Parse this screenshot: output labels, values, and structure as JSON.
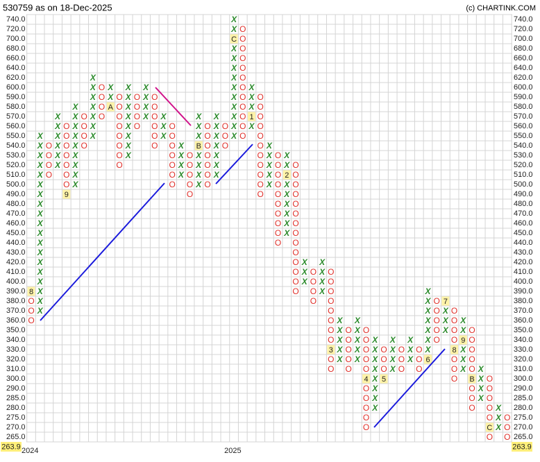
{
  "chart_data": {
    "type": "pnf",
    "title": "530759 as on 18-Dec-2025",
    "source": "(c) CHARTINK.COM",
    "last_price": {
      "value": 263.9,
      "label": "263.9"
    },
    "x_color": "#2a8a2a",
    "o_color": "#e0302a",
    "grid": true,
    "yticks": [
      {
        "value": 740,
        "label": "740.0"
      },
      {
        "value": 720,
        "label": "720.0"
      },
      {
        "value": 700,
        "label": "700.0"
      },
      {
        "value": 680,
        "label": "680.0"
      },
      {
        "value": 660,
        "label": "660.0"
      },
      {
        "value": 640,
        "label": "640.0"
      },
      {
        "value": 620,
        "label": "620.0"
      },
      {
        "value": 600,
        "label": "600.0"
      },
      {
        "value": 590,
        "label": "590.0"
      },
      {
        "value": 580,
        "label": "580.0"
      },
      {
        "value": 570,
        "label": "570.0"
      },
      {
        "value": 560,
        "label": "560.0"
      },
      {
        "value": 550,
        "label": "550.0"
      },
      {
        "value": 540,
        "label": "540.0"
      },
      {
        "value": 530,
        "label": "530.0"
      },
      {
        "value": 520,
        "label": "520.0"
      },
      {
        "value": 510,
        "label": "510.0"
      },
      {
        "value": 500,
        "label": "500.0"
      },
      {
        "value": 490,
        "label": "490.0"
      },
      {
        "value": 480,
        "label": "480.0"
      },
      {
        "value": 470,
        "label": "470.0"
      },
      {
        "value": 460,
        "label": "460.0"
      },
      {
        "value": 450,
        "label": "450.0"
      },
      {
        "value": 440,
        "label": "440.0"
      },
      {
        "value": 430,
        "label": "430.0"
      },
      {
        "value": 420,
        "label": "420.0"
      },
      {
        "value": 410,
        "label": "410.0"
      },
      {
        "value": 400,
        "label": "400.0"
      },
      {
        "value": 390,
        "label": "390.0"
      },
      {
        "value": 380,
        "label": "380.0"
      },
      {
        "value": 370,
        "label": "370.0"
      },
      {
        "value": 360,
        "label": "360.0"
      },
      {
        "value": 350,
        "label": "350.0"
      },
      {
        "value": 340,
        "label": "340.0"
      },
      {
        "value": 330,
        "label": "330.0"
      },
      {
        "value": 320,
        "label": "320.0"
      },
      {
        "value": 310,
        "label": "310.0"
      },
      {
        "value": 300,
        "label": "300.0"
      },
      {
        "value": 290,
        "label": "290.0"
      },
      {
        "value": 285,
        "label": "285.0"
      },
      {
        "value": 280,
        "label": "280.0"
      },
      {
        "value": 275,
        "label": "275.0"
      },
      {
        "value": 270,
        "label": "270.0"
      },
      {
        "value": 265,
        "label": "265.0"
      }
    ],
    "columns": [
      {
        "type": "O",
        "high": 390,
        "low": 360,
        "months": [
          {
            "value": 390,
            "label": "8"
          }
        ],
        "year": "2024"
      },
      {
        "type": "X",
        "high": 550,
        "low": 370
      },
      {
        "type": "O",
        "high": 540,
        "low": 510
      },
      {
        "type": "X",
        "high": 570,
        "low": 520
      },
      {
        "type": "O",
        "high": 560,
        "low": 490,
        "months": [
          {
            "value": 490,
            "label": "9"
          }
        ]
      },
      {
        "type": "X",
        "high": 580,
        "low": 500
      },
      {
        "type": "O",
        "high": 570,
        "low": 540
      },
      {
        "type": "X",
        "high": 620,
        "low": 550
      },
      {
        "type": "O",
        "high": 600,
        "low": 570
      },
      {
        "type": "X",
        "high": 600,
        "low": 580,
        "months": [
          {
            "value": 580,
            "label": "A"
          }
        ]
      },
      {
        "type": "O",
        "high": 590,
        "low": 520
      },
      {
        "type": "X",
        "high": 600,
        "low": 530
      },
      {
        "type": "O",
        "high": 590,
        "low": 560
      },
      {
        "type": "X",
        "high": 600,
        "low": 570
      },
      {
        "type": "O",
        "high": 590,
        "low": 540
      },
      {
        "type": "X",
        "high": 570,
        "low": 550
      },
      {
        "type": "O",
        "high": 560,
        "low": 500
      },
      {
        "type": "X",
        "high": 540,
        "low": 510
      },
      {
        "type": "O",
        "high": 530,
        "low": 490
      },
      {
        "type": "X",
        "high": 570,
        "low": 500,
        "months": [
          {
            "value": 540,
            "label": "B"
          }
        ]
      },
      {
        "type": "O",
        "high": 560,
        "low": 500
      },
      {
        "type": "X",
        "high": 570,
        "low": 510
      },
      {
        "type": "O",
        "high": 560,
        "low": 540
      },
      {
        "type": "X",
        "high": 740,
        "low": 550,
        "months": [
          {
            "value": 700,
            "label": "C"
          }
        ],
        "year": "2025"
      },
      {
        "type": "O",
        "high": 720,
        "low": 550
      },
      {
        "type": "X",
        "high": 600,
        "low": 560,
        "months": [
          {
            "value": 570,
            "label": "1"
          }
        ]
      },
      {
        "type": "O",
        "high": 590,
        "low": 490
      },
      {
        "type": "X",
        "high": 540,
        "low": 500
      },
      {
        "type": "O",
        "high": 530,
        "low": 440
      },
      {
        "type": "X",
        "high": 530,
        "low": 450,
        "months": [
          {
            "value": 510,
            "label": "2"
          }
        ]
      },
      {
        "type": "O",
        "high": 520,
        "low": 390
      },
      {
        "type": "X",
        "high": 420,
        "low": 400
      },
      {
        "type": "O",
        "high": 410,
        "low": 380
      },
      {
        "type": "X",
        "high": 420,
        "low": 390
      },
      {
        "type": "O",
        "high": 410,
        "low": 310,
        "months": [
          {
            "value": 330,
            "label": "3"
          }
        ]
      },
      {
        "type": "X",
        "high": 360,
        "low": 320
      },
      {
        "type": "O",
        "high": 350,
        "low": 310
      },
      {
        "type": "X",
        "high": 360,
        "low": 320
      },
      {
        "type": "O",
        "high": 350,
        "low": 270,
        "months": [
          {
            "value": 300,
            "label": "4"
          }
        ]
      },
      {
        "type": "X",
        "high": 340,
        "low": 280
      },
      {
        "type": "O",
        "high": 330,
        "low": 300,
        "months": [
          {
            "value": 300,
            "label": "5"
          }
        ]
      },
      {
        "type": "X",
        "high": 340,
        "low": 310
      },
      {
        "type": "O",
        "high": 330,
        "low": 310
      },
      {
        "type": "X",
        "high": 340,
        "low": 320
      },
      {
        "type": "O",
        "high": 330,
        "low": 310
      },
      {
        "type": "X",
        "high": 390,
        "low": 320,
        "months": [
          {
            "value": 320,
            "label": "6"
          }
        ]
      },
      {
        "type": "O",
        "high": 380,
        "low": 340
      },
      {
        "type": "X",
        "high": 380,
        "low": 350,
        "months": [
          {
            "value": 380,
            "label": "7"
          }
        ]
      },
      {
        "type": "O",
        "high": 370,
        "low": 300,
        "months": [
          {
            "value": 330,
            "label": "8"
          }
        ]
      },
      {
        "type": "X",
        "high": 360,
        "low": 310,
        "months": [
          {
            "value": 340,
            "label": "9"
          }
        ]
      },
      {
        "type": "O",
        "high": 350,
        "low": 280,
        "months": [
          {
            "value": 300,
            "label": "B"
          }
        ]
      },
      {
        "type": "X",
        "high": 310,
        "low": 285
      },
      {
        "type": "O",
        "high": 300,
        "low": 265,
        "months": [
          {
            "value": 270,
            "label": "C"
          }
        ]
      },
      {
        "type": "X",
        "high": 280,
        "low": 270
      },
      {
        "type": "O",
        "high": 275,
        "low": 265
      }
    ]
  }
}
